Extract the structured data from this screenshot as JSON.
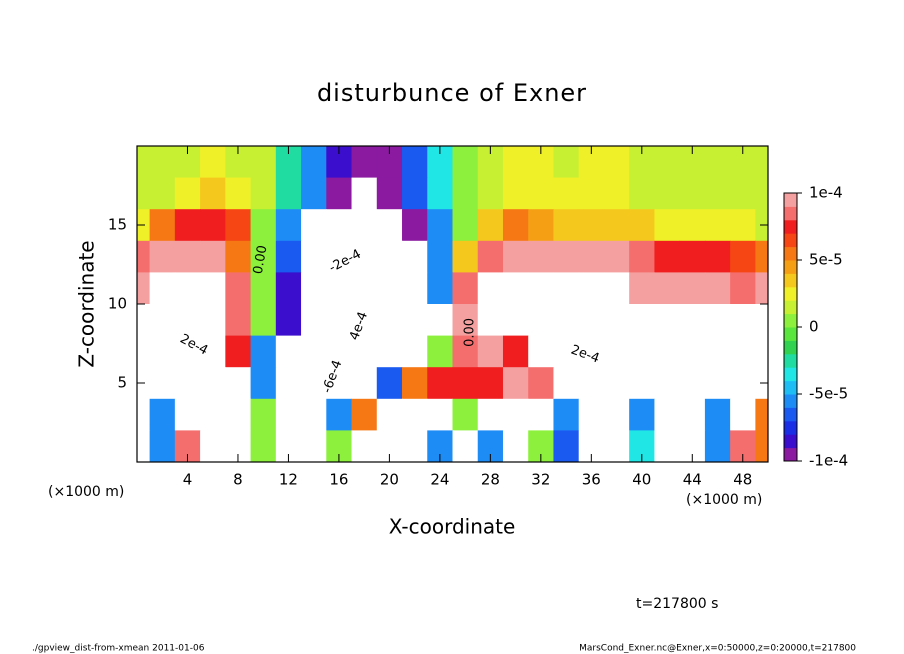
{
  "chart_data": {
    "type": "heatmap",
    "title": "disturbunce of Exner",
    "xlabel": "X-coordinate",
    "ylabel": "Z-coordinate",
    "x_unit": "(×1000 m)",
    "y_unit": "(×1000 m)",
    "time_label": "t=217800 s",
    "footer_left": "./gpview_dist-from-xmean  2011-01-06",
    "footer_right": "MarsCond_Exner.nc@Exner,x=0:50000,z=0:20000,t=217800",
    "xlim": [
      0,
      50
    ],
    "ylim": [
      0,
      20
    ],
    "xticks": [
      4,
      8,
      12,
      16,
      20,
      24,
      28,
      32,
      36,
      40,
      44,
      48
    ],
    "yticks": [
      5,
      10,
      15
    ],
    "clim": [
      -0.0001,
      0.0001
    ],
    "cticks": [
      {
        "value": 0.0001,
        "label": "1e-4"
      },
      {
        "value": 5e-05,
        "label": "5e-5"
      },
      0,
      {
        "value": -5e-05,
        "label": "-5e-5"
      },
      {
        "value": -0.0001,
        "label": "-1e-4"
      }
    ],
    "colors": [
      "#8b1aa0",
      "#3a0ecc",
      "#1a2ee6",
      "#1a5af0",
      "#1e8cf5",
      "#1ebef5",
      "#20e6e6",
      "#20dca0",
      "#30d250",
      "#5ae63c",
      "#8cf03c",
      "#c8f032",
      "#f0f028",
      "#f5c81e",
      "#f5a014",
      "#f57814",
      "#f54614",
      "#f01e1e",
      "#f56e6e",
      "#f5a0a0"
    ],
    "out_of_range_color": "#ffffff",
    "contour_labels": [
      "0.00",
      "-2e-4",
      "4e-4",
      "-6e-4",
      "2e-4",
      "0.00",
      "2e-4"
    ],
    "x": [
      0,
      2,
      4,
      6,
      8,
      10,
      12,
      14,
      16,
      18,
      20,
      22,
      24,
      26,
      28,
      30,
      32,
      34,
      36,
      38,
      40,
      42,
      44,
      46,
      48,
      50
    ],
    "z": [
      19,
      17,
      15,
      13,
      11,
      9,
      7,
      5,
      3,
      1
    ],
    "values": [
      [
        1e-05,
        1e-05,
        1e-05,
        2e-05,
        1e-05,
        1e-05,
        -3e-05,
        -6e-05,
        -8e-05,
        -9e-05,
        -9e-05,
        -7e-05,
        -4e-05,
        0,
        1e-05,
        2e-05,
        2e-05,
        1e-05,
        2e-05,
        2e-05,
        1e-05,
        1e-05,
        1e-05,
        1e-05,
        1e-05,
        1e-05
      ],
      [
        1e-05,
        1e-05,
        2e-05,
        3e-05,
        2e-05,
        1e-05,
        -3e-05,
        -6e-05,
        -0.0001,
        -0.0002,
        -9e-05,
        -7e-05,
        -4e-05,
        0,
        1e-05,
        2e-05,
        2e-05,
        2e-05,
        2e-05,
        2e-05,
        1e-05,
        1e-05,
        1e-05,
        1e-05,
        1e-05,
        1e-05
      ],
      [
        2e-05,
        5e-05,
        7e-05,
        7e-05,
        6e-05,
        0,
        -6e-05,
        -0.0002,
        -0.0002,
        -0.0002,
        -0.00015,
        -9e-05,
        -6e-05,
        0,
        3e-05,
        5e-05,
        4e-05,
        3e-05,
        3e-05,
        3e-05,
        3e-05,
        2e-05,
        2e-05,
        2e-05,
        2e-05,
        1e-05
      ],
      [
        8e-05,
        0.0001,
        0.0001,
        9e-05,
        5e-05,
        0,
        -7e-05,
        -0.0003,
        -0.0003,
        -0.0003,
        -0.0003,
        -0.0002,
        -6e-05,
        3e-05,
        8e-05,
        9e-05,
        9e-05,
        9e-05,
        9e-05,
        9e-05,
        8e-05,
        7e-05,
        7e-05,
        7e-05,
        6e-05,
        5e-05
      ],
      [
        9e-05,
        0.00015,
        0.00015,
        0.00012,
        8e-05,
        0,
        -8e-05,
        -0.0004,
        -0.0004,
        -0.0004,
        -0.0003,
        -0.0002,
        -6e-05,
        8e-05,
        0.00015,
        0.00015,
        0.00015,
        0.00015,
        0.00015,
        0.00015,
        0.0001,
        0.0001,
        0.0001,
        9e-05,
        8e-05,
        9e-05
      ],
      [
        0.0002,
        0.0002,
        0.0002,
        0.00015,
        8e-05,
        0,
        -8e-05,
        -0.0005,
        -0.0005,
        -0.0005,
        -0.0004,
        -0.0003,
        -0.0002,
        9e-05,
        0.0002,
        0.0002,
        0.0002,
        0.0002,
        0.0002,
        0.0002,
        0.0002,
        0.0002,
        0.0002,
        0.0002,
        0.0002,
        0.0002
      ],
      [
        0.0002,
        0.0002,
        0.0002,
        0.00015,
        7e-05,
        -6e-05,
        -0.0002,
        -0.0006,
        -0.0006,
        -0.0003,
        -0.0003,
        -0.0003,
        0,
        8e-05,
        0.0001,
        7e-05,
        0.0002,
        0.0002,
        0.0002,
        0.0002,
        0.0002,
        0.0002,
        0.0002,
        0.0002,
        0.0002,
        0.0002
      ],
      [
        0.0002,
        0.0002,
        0.0002,
        0.0002,
        0.00015,
        -6e-05,
        -0.0002,
        -0.0006,
        -0.0006,
        -0.0003,
        -7e-05,
        5e-05,
        7e-05,
        7e-05,
        7e-05,
        0.0001,
        8e-05,
        0.0002,
        0.0002,
        0.0002,
        0.0002,
        0.0002,
        0.0002,
        0.0002,
        0.0002,
        0.0002
      ],
      [
        -0.0002,
        -6e-05,
        0.0002,
        0.0002,
        0.0002,
        0,
        -0.0002,
        -0.0003,
        -6e-05,
        5e-05,
        0.0002,
        0.0002,
        0.0002,
        0,
        -0.0002,
        0.0002,
        0.0002,
        -6e-05,
        -0.0003,
        -0.0003,
        -6e-05,
        -0.0002,
        -0.0002,
        -6e-05,
        0.0002,
        5e-05
      ],
      [
        -0.0002,
        -6e-05,
        8e-05,
        0.0002,
        0.0002,
        0,
        -0.0002,
        -0.0002,
        0,
        0.0002,
        0.0002,
        0.0002,
        -6e-05,
        -0.0002,
        -6e-05,
        0.0002,
        0,
        -7e-05,
        -0.0003,
        -0.0003,
        -4e-05,
        -0.0002,
        -0.0002,
        -6e-05,
        8e-05,
        5e-05
      ]
    ]
  }
}
